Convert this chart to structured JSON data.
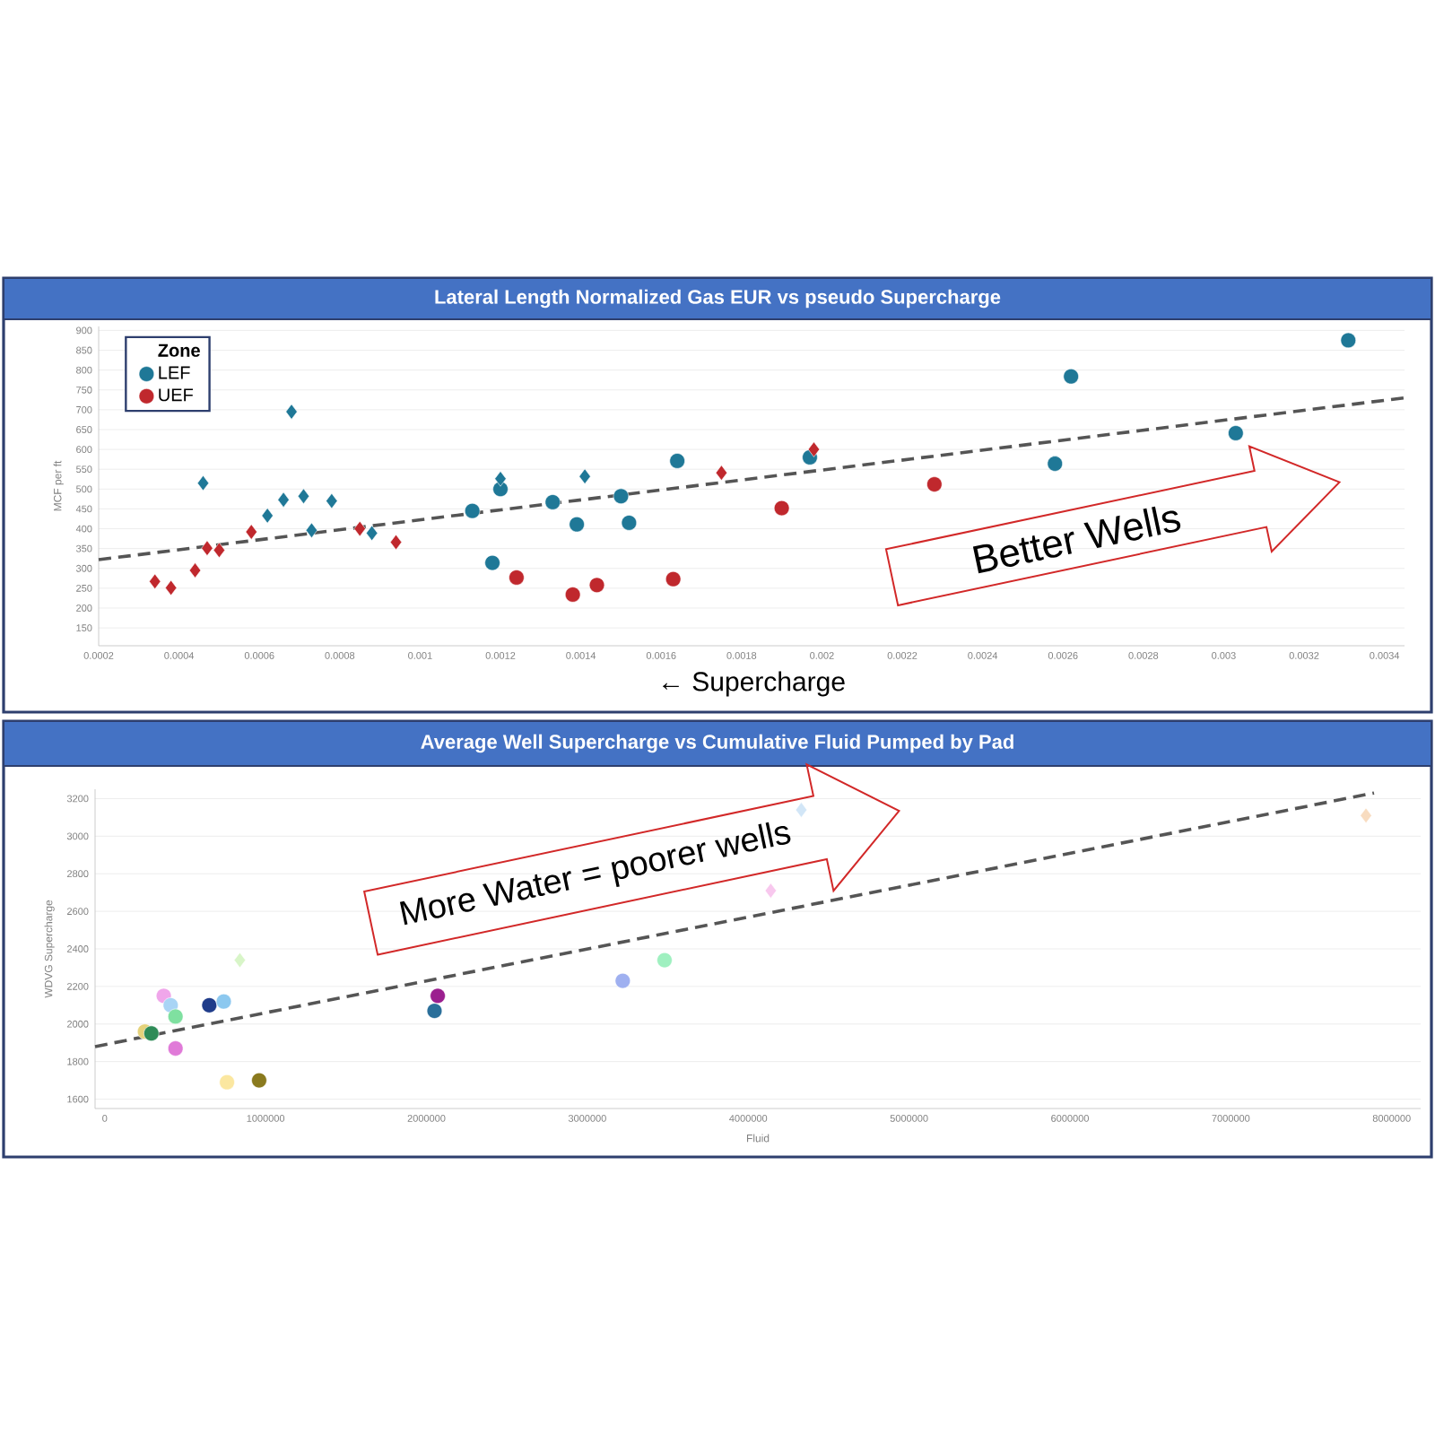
{
  "chart_data": [
    {
      "type": "scatter",
      "title": "Lateral Length Normalized Gas EUR vs pseudo Supercharge",
      "xlabel": "← Supercharge",
      "ylabel": "MCF per ft",
      "legend_title": "Zone",
      "annotations": [
        "Better Wells"
      ],
      "xlim": [
        0.0002,
        0.00345
      ],
      "ylim": [
        105,
        910
      ],
      "xticks": [
        0.0002,
        0.0004,
        0.0006,
        0.0008,
        0.001,
        0.0012,
        0.0014,
        0.0016,
        0.0018,
        0.002,
        0.0022,
        0.0024,
        0.0026,
        0.0028,
        0.003,
        0.0032,
        0.0034
      ],
      "yticks": [
        150,
        200,
        250,
        300,
        350,
        400,
        450,
        500,
        550,
        600,
        650,
        700,
        750,
        800,
        850,
        900
      ],
      "grid": "y",
      "legend": "top left",
      "series": [
        {
          "name": "LEF",
          "color": "#1f7897",
          "marker": "circle",
          "x": [
            0.00113,
            0.0012,
            0.00118,
            0.00133,
            0.00139,
            0.0015,
            0.00152,
            0.00164,
            0.00197,
            0.00258,
            0.00262,
            0.00303,
            0.00331
          ],
          "values": [
            445,
            500,
            314,
            467,
            411,
            482,
            415,
            571,
            580,
            564,
            784,
            641,
            875
          ]
        },
        {
          "name": "UEF",
          "color": "#c0282d",
          "marker": "circle",
          "x": [
            0.00124,
            0.00138,
            0.00144,
            0.00163,
            0.0019,
            0.00228
          ],
          "values": [
            277,
            234,
            258,
            273,
            452,
            512
          ]
        },
        {
          "color": "#1f7897",
          "marker": "diamond",
          "x": [
            0.00046,
            0.00068,
            0.00062,
            0.00066,
            0.00071,
            0.00073,
            0.00078,
            0.00088,
            0.0012,
            0.00141
          ],
          "values": [
            515,
            695,
            433,
            473,
            482,
            396,
            470,
            389,
            526,
            532
          ]
        },
        {
          "color": "#c0282d",
          "marker": "diamond",
          "x": [
            0.00034,
            0.00038,
            0.00044,
            0.00047,
            0.0005,
            0.00058,
            0.00085,
            0.00094,
            0.00175,
            0.00198
          ],
          "values": [
            267,
            251,
            295,
            351,
            346,
            392,
            400,
            366,
            541,
            600
          ]
        },
        {
          "type": "line",
          "color": "#555555",
          "marker": "none",
          "line_style": "dashed",
          "x": [
            0.0002,
            0.00345
          ],
          "values": [
            322,
            730
          ]
        }
      ]
    },
    {
      "type": "scatter",
      "title": "Average Well Supercharge vs Cumulative Fluid Pumped by Pad",
      "xlabel": "Fluid",
      "ylabel": "WDVG Supercharge",
      "annotations": [
        "More Water = poorer wells"
      ],
      "xlim": [
        -60000,
        8180000
      ],
      "ylim": [
        1550,
        3250
      ],
      "xticks": [
        0,
        1000000,
        2000000,
        3000000,
        4000000,
        5000000,
        6000000,
        7000000,
        8000000
      ],
      "yticks": [
        1600,
        1800,
        2000,
        2200,
        2400,
        2600,
        2800,
        3000,
        3200
      ],
      "grid": "y",
      "series": [
        {
          "marker": "circle",
          "x": [
            250000,
            290000,
            367000,
            410000,
            440000,
            440000,
            650000,
            740000,
            760000,
            960000,
            2050000,
            2070000,
            3220000,
            3480000
          ],
          "values": [
            1960,
            1950,
            2150,
            2100,
            2040,
            1870,
            2100,
            2120,
            1690,
            1700,
            2070,
            2150,
            2230,
            2340
          ],
          "colors": [
            "#e5d27a",
            "#2e8b57",
            "#f0a6ea",
            "#a9d4f5",
            "#7fe0a0",
            "#e07ad8",
            "#1f3c8a",
            "#8cc8ef",
            "#fbe7a0",
            "#8a7a1e",
            "#2a6f9a",
            "#9b1f8f",
            "#9fb0f0",
            "#9ff0c0"
          ]
        },
        {
          "marker": "diamond",
          "x": [
            840000,
            4330000,
            4140000,
            7840000
          ],
          "values": [
            2340,
            3140,
            2710,
            3110
          ],
          "colors": [
            "#d8f5c8",
            "#d2e6f7",
            "#f8c8ee",
            "#f8dcc0"
          ]
        },
        {
          "type": "line",
          "color": "#555555",
          "marker": "none",
          "line_style": "dashed",
          "x": [
            -60000,
            7890000
          ],
          "values": [
            1880,
            3230
          ]
        }
      ]
    }
  ]
}
